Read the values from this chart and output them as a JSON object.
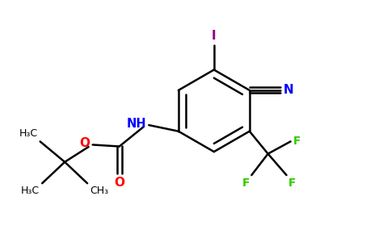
{
  "bg_color": "#ffffff",
  "bond_color": "#000000",
  "N_color": "#0000ff",
  "O_color": "#ff0000",
  "F_color": "#33cc00",
  "I_color": "#8b008b",
  "figsize": [
    4.84,
    3.0
  ],
  "dpi": 100,
  "xlim": [
    0,
    9.5
  ],
  "ylim": [
    0,
    5.8
  ]
}
